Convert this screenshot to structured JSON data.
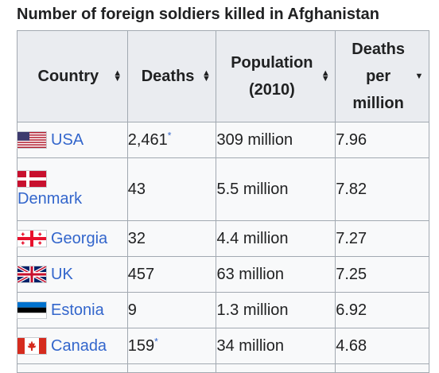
{
  "caption": "Number of foreign soldiers killed in Afghanistan",
  "headers": {
    "country": "Country",
    "deaths": "Deaths",
    "population_line1": "Population",
    "population_line2": "(2010)",
    "per_million_line1": "Deaths",
    "per_million_line2": "per",
    "per_million_line3": "million"
  },
  "sort_icons": {
    "country": "sort-both-icon",
    "deaths": "sort-both-icon",
    "population": "sort-both-icon",
    "per_million": "sort-descending-icon"
  },
  "rows": [
    {
      "country": "USA",
      "flag": "us-flag-icon",
      "deaths": "2,461",
      "deaths_note": "*",
      "population": "309 million",
      "per_million": "7.96"
    },
    {
      "country": "Denmark",
      "flag": "denmark-flag-icon",
      "deaths": "43",
      "deaths_note": "",
      "population": "5.5 million",
      "per_million": "7.82"
    },
    {
      "country": "Georgia",
      "flag": "georgia-flag-icon",
      "deaths": "32",
      "deaths_note": "",
      "population": "4.4 million",
      "per_million": "7.27"
    },
    {
      "country": "UK",
      "flag": "uk-flag-icon",
      "deaths": "457",
      "deaths_note": "",
      "population": "63 million",
      "per_million": "7.25"
    },
    {
      "country": "Estonia",
      "flag": "estonia-flag-icon",
      "deaths": "9",
      "deaths_note": "",
      "population": "1.3 million",
      "per_million": "6.92"
    },
    {
      "country": "Canada",
      "flag": "canada-flag-icon",
      "deaths": "159",
      "deaths_note": "*",
      "population": "34 million",
      "per_million": "4.68"
    }
  ],
  "colors": {
    "link": "#3366cc",
    "header_bg": "#eaecf0",
    "cell_bg": "#f8f9fa",
    "border": "#a2a9b1"
  }
}
